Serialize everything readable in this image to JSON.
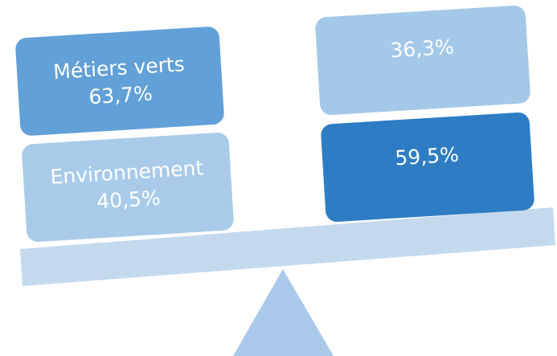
{
  "left": [
    {
      "label": "Métiers verts",
      "value": "63,7%"
    },
    {
      "label": "Environnement",
      "value": "40,5%"
    }
  ],
  "right": [
    {
      "value": "36,3%"
    },
    {
      "value": "59,5%"
    }
  ]
}
